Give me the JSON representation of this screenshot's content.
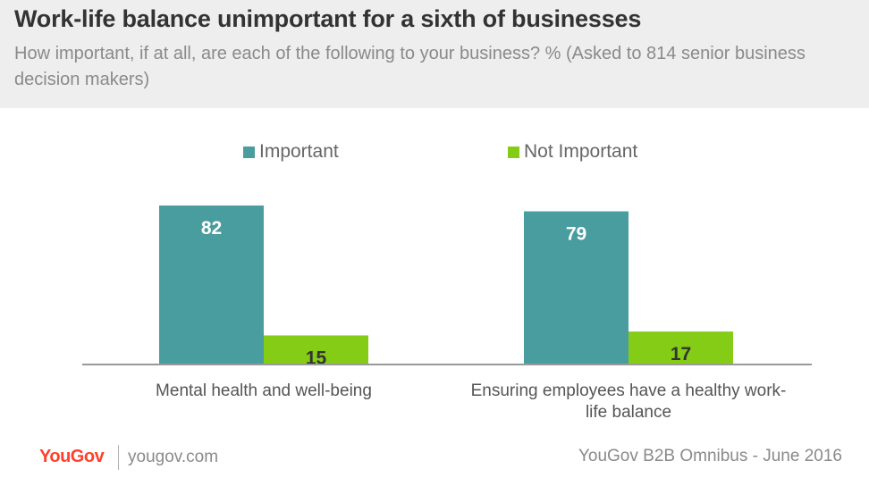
{
  "header": {
    "title": "Work-life balance unimportant for a sixth of businesses",
    "subtitle": "How important, if at all, are each of the following to your business? % (Asked to 814 senior business decision makers)"
  },
  "colors": {
    "important": "#4a9d9f",
    "not_important": "#84cc16",
    "header_bg": "#eeeeee",
    "brand": "#ff412c"
  },
  "chart_data": {
    "type": "bar",
    "categories": [
      "Mental health and well-being",
      "Ensuring employees have a healthy work-life balance"
    ],
    "series": [
      {
        "name": "Important",
        "values": [
          82,
          79
        ]
      },
      {
        "name": "Not Important",
        "values": [
          15,
          17
        ]
      }
    ],
    "ylim": [
      0,
      100
    ],
    "grid": false,
    "legend": "top",
    "data_labels": true
  },
  "footer": {
    "logo": "YouGov",
    "site": "yougov.com",
    "source": "YouGov B2B Omnibus - June 2016"
  }
}
